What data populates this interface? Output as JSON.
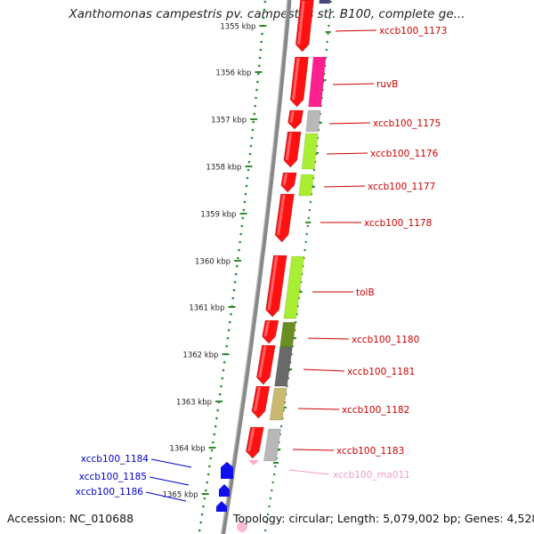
{
  "title": "Xanthomonas campestris pv. campestris str. B100, complete ge...",
  "footer": {
    "accession": "Accession: NC_010688",
    "topology": "Topology: circular; Length: 5,079,002 bp; Genes: 4,528"
  },
  "colors": {
    "backbone": "#888888",
    "ruler_dots": "#2e8b2e",
    "label_red": "#cc0000",
    "label_blue": "#0000cc",
    "label_pink": "#f09cc8",
    "gene_red": "#ff1111",
    "gene_blue": "#1010ee",
    "magenta": "#ff2090",
    "silver": "#b8b8b8",
    "lime": "#aaee33",
    "olive": "#6b8e23",
    "dimgray": "#696969",
    "khaki": "#c8b870",
    "darkslate": "#484880",
    "pink": "#ffaacc"
  },
  "ruler": {
    "ticks": [
      "1355 kbp",
      "1356 kbp",
      "1357 kbp",
      "1358 kbp",
      "1359 kbp",
      "1360 kbp",
      "1361 kbp",
      "1362 kbp",
      "1363 kbp",
      "1364 kbp",
      "1365 kbp"
    ]
  },
  "genes": [
    {
      "name": "xccb100_1173",
      "strand": "+",
      "color": "gene_red"
    },
    {
      "name": "ruvB",
      "strand": "+",
      "color": "gene_red"
    },
    {
      "name": "xccb100_1175",
      "strand": "+",
      "color": "gene_red"
    },
    {
      "name": "xccb100_1176",
      "strand": "+",
      "color": "gene_red"
    },
    {
      "name": "xccb100_1177",
      "strand": "+",
      "color": "gene_red"
    },
    {
      "name": "xccb100_1178",
      "strand": "+",
      "color": "gene_red"
    },
    {
      "name": "tolB",
      "strand": "+",
      "color": "gene_red"
    },
    {
      "name": "xccb100_1180",
      "strand": "+",
      "color": "gene_red"
    },
    {
      "name": "xccb100_1181",
      "strand": "+",
      "color": "gene_red"
    },
    {
      "name": "xccb100_1182",
      "strand": "+",
      "color": "gene_red"
    },
    {
      "name": "xccb100_1183",
      "strand": "+",
      "color": "gene_red"
    },
    {
      "name": "xccb100_rna011",
      "strand": "+",
      "color": "pink"
    },
    {
      "name": "xccb100_1184",
      "strand": "-",
      "color": "gene_blue"
    },
    {
      "name": "xccb100_1185",
      "strand": "-",
      "color": "gene_blue"
    },
    {
      "name": "xccb100_1186",
      "strand": "-",
      "color": "gene_blue"
    }
  ]
}
